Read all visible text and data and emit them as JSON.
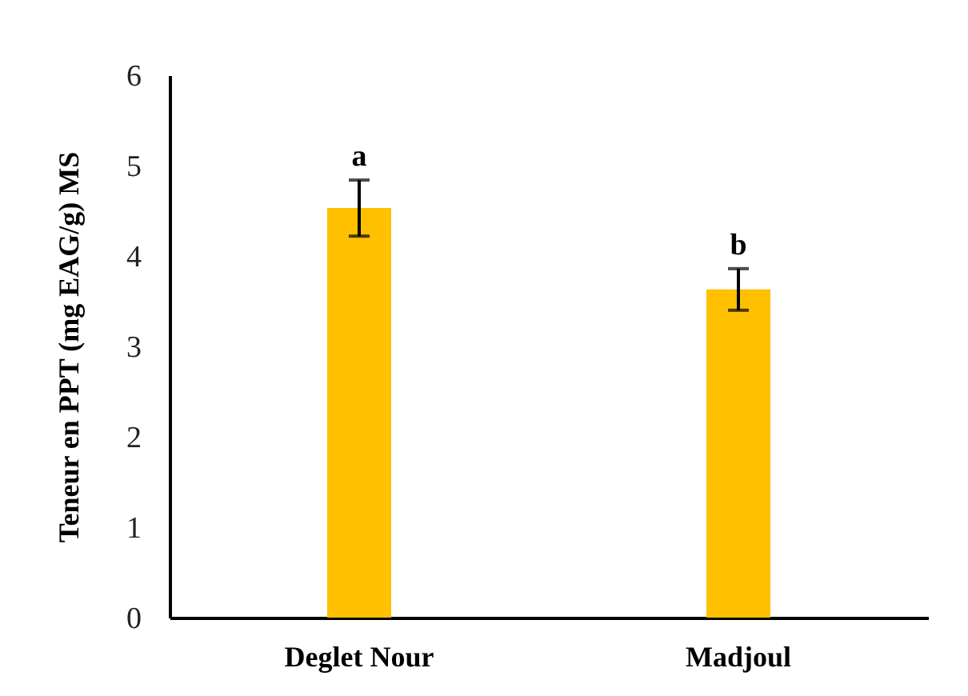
{
  "chart_data": {
    "type": "bar",
    "ylabel": "Teneur en PPT (mg EAG/g) MS",
    "categories": [
      "Deglet Nour",
      "Madjoul"
    ],
    "values": [
      4.53,
      3.63
    ],
    "errors": [
      0.31,
      0.23
    ],
    "color": "#ffc000",
    "ylim": [
      0,
      6
    ],
    "yticks": [
      0,
      1,
      2,
      3,
      4,
      5,
      6
    ],
    "annotations": [
      {
        "text": "a",
        "x": "Deglet Nour",
        "y": 4.84
      },
      {
        "text": "b",
        "x": "Madjoul",
        "y": 3.86
      }
    ]
  }
}
